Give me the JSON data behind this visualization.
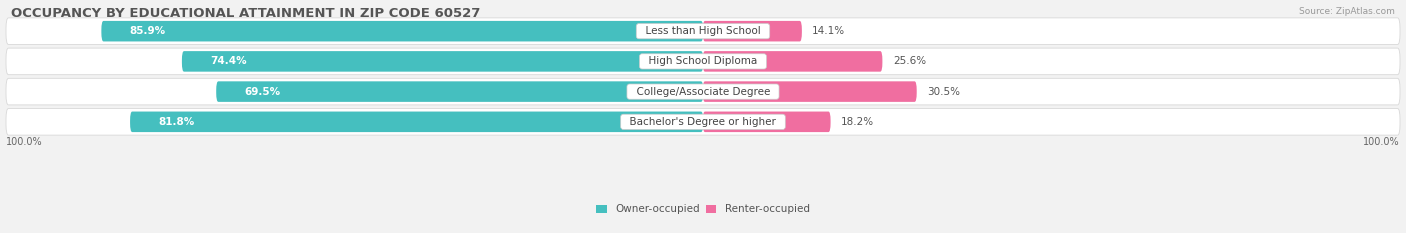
{
  "title": "OCCUPANCY BY EDUCATIONAL ATTAINMENT IN ZIP CODE 60527",
  "source": "Source: ZipAtlas.com",
  "categories": [
    "Less than High School",
    "High School Diploma",
    "College/Associate Degree",
    "Bachelor's Degree or higher"
  ],
  "owner_pct": [
    85.9,
    74.4,
    69.5,
    81.8
  ],
  "renter_pct": [
    14.1,
    25.6,
    30.5,
    18.2
  ],
  "owner_color": "#45BFBF",
  "renter_color": "#F06EA0",
  "bg_color": "#f2f2f2",
  "row_bg": "#ffffff",
  "title_fontsize": 9.5,
  "label_fontsize": 7.5,
  "pct_fontsize": 7.5,
  "tick_fontsize": 7,
  "source_fontsize": 6.5
}
